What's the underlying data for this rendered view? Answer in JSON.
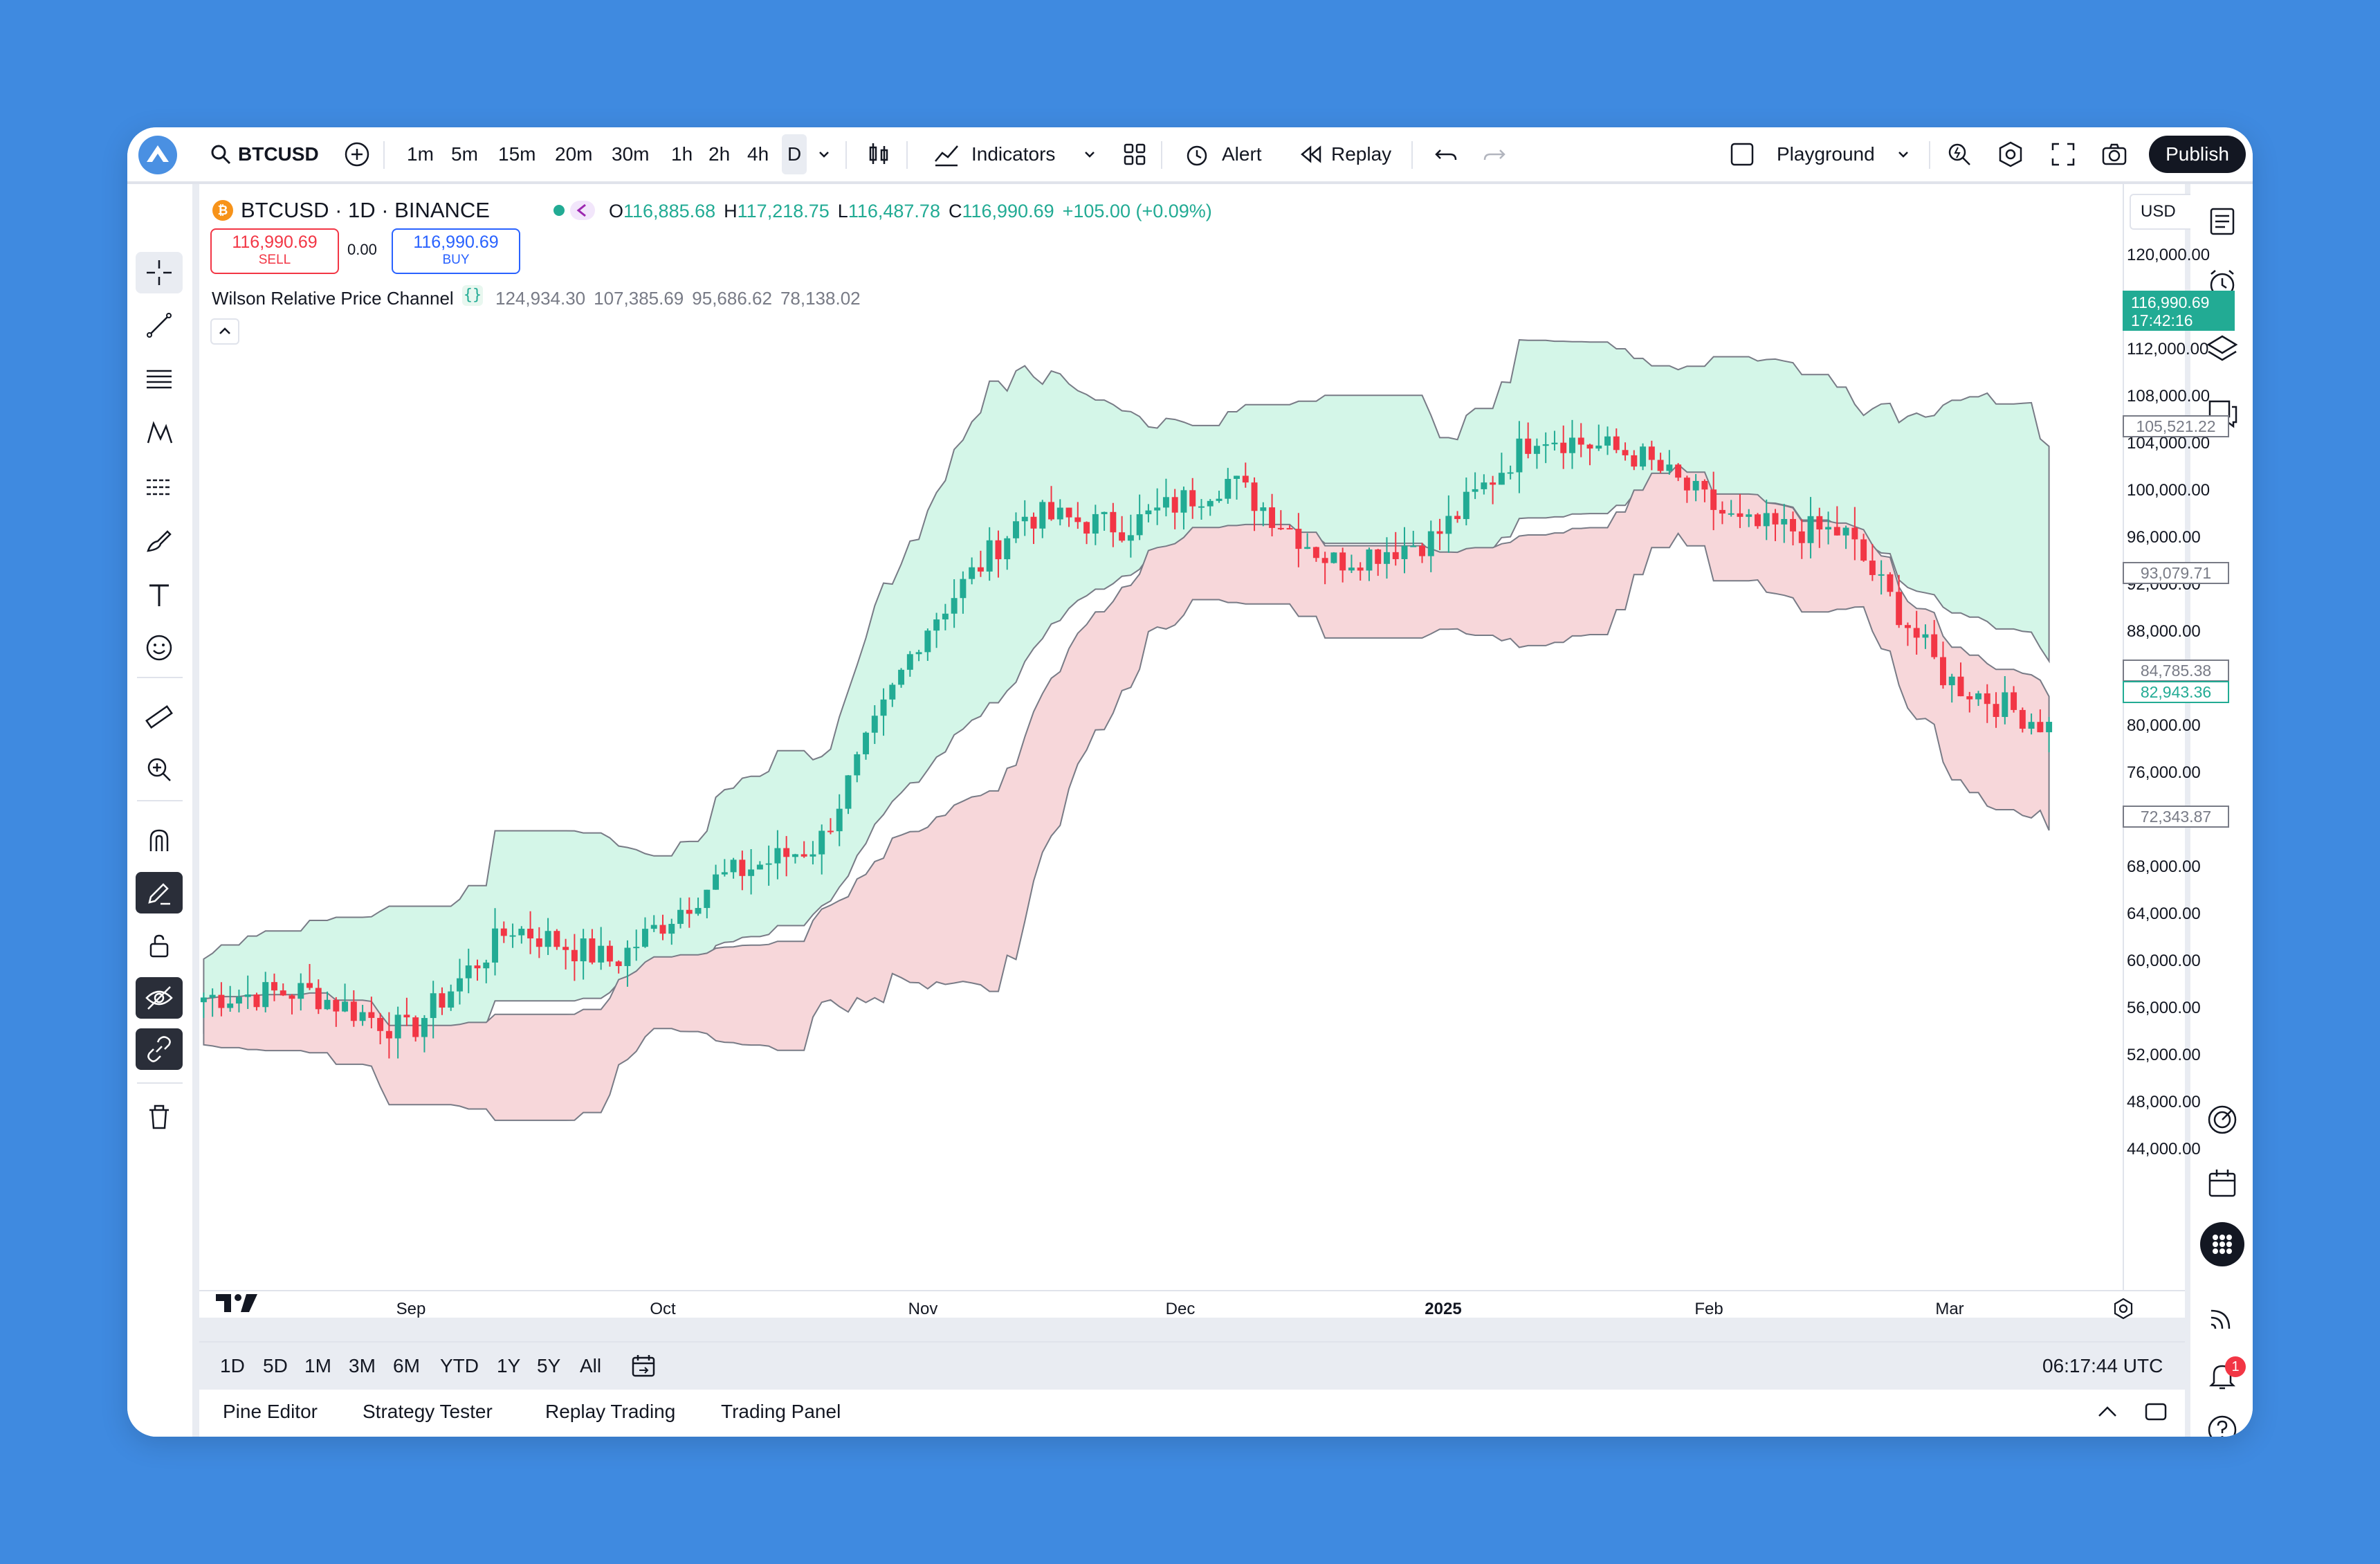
{
  "toolbar": {
    "symbol": "BTCUSD",
    "intervals": [
      "1m",
      "5m",
      "15m",
      "20m",
      "30m",
      "1h",
      "2h",
      "4h",
      "D"
    ],
    "active_interval": "D",
    "indicators_label": "Indicators",
    "alert_label": "Alert",
    "replay_label": "Replay",
    "layout_name": "Playground",
    "publish_label": "Publish"
  },
  "legend": {
    "title": "BTCUSD · 1D · BINANCE",
    "o_label": "O",
    "o": "116,885.68",
    "h_label": "H",
    "h": "117,218.75",
    "l_label": "L",
    "l": "116,487.78",
    "c_label": "C",
    "c": "116,990.69",
    "change": "+105.00 (+0.09%)",
    "sell_price": "116,990.69",
    "sell_label": "SELL",
    "spread": "0.00",
    "buy_price": "116,990.69",
    "buy_label": "BUY",
    "indicator_name": "Wilson Relative Price Channel",
    "indicator_values": [
      "124,934.30",
      "107,385.69",
      "95,686.62",
      "78,138.02"
    ]
  },
  "currency": "USD",
  "price_axis": {
    "labels": [
      "120,000.00",
      "112,000.00",
      "108,000.00",
      "104,000.00",
      "100,000.00",
      "96,000.00",
      "92,000.00",
      "88,000.00",
      "80,000.00",
      "76,000.00",
      "68,000.00",
      "64,000.00",
      "60,000.00",
      "56,000.00",
      "52,000.00",
      "48,000.00",
      "44,000.00"
    ],
    "current_price": "116,990.69",
    "countdown": "17:42:16",
    "tags": [
      {
        "text": "105,521.22",
        "style": "gray"
      },
      {
        "text": "93,079.71",
        "style": "gray"
      },
      {
        "text": "84,785.38",
        "style": "gray"
      },
      {
        "text": "82,943.36",
        "style": "green"
      },
      {
        "text": "72,343.87",
        "style": "gray"
      }
    ]
  },
  "time_axis": [
    "Sep",
    "Oct",
    "Nov",
    "Dec",
    "2025",
    "Feb",
    "Mar"
  ],
  "ranges": [
    "1D",
    "5D",
    "1M",
    "3M",
    "6M",
    "YTD",
    "1Y",
    "5Y",
    "All"
  ],
  "clock": "06:17:44 UTC",
  "bottom_tabs": [
    "Pine Editor",
    "Strategy Tester",
    "Replay Trading",
    "Trading Panel"
  ],
  "notifications": "1",
  "colors": {
    "up": "#22ab94",
    "down": "#f23645",
    "band_upper": "#d4f6e8",
    "band_lower": "#f7d7da",
    "accent": "#2962ff"
  },
  "chart_data": {
    "type": "candlestick",
    "symbol": "BTCUSD",
    "timeframe": "1D",
    "x_ticks": [
      "Sep",
      "Oct",
      "Nov",
      "Dec",
      "2025",
      "Feb",
      "Mar"
    ],
    "ylim": [
      44000,
      120000
    ],
    "approx_close_path": [
      {
        "t": "Aug",
        "close": 57000
      },
      {
        "t": "Sep",
        "close": 57500
      },
      {
        "t": "Sep",
        "close": 54000
      },
      {
        "t": "Oct",
        "close": 63000
      },
      {
        "t": "Oct",
        "close": 60000
      },
      {
        "t": "Oct",
        "close": 67000
      },
      {
        "t": "Nov",
        "close": 70000
      },
      {
        "t": "Nov",
        "close": 88000
      },
      {
        "t": "Nov",
        "close": 98000
      },
      {
        "t": "Dec",
        "close": 97000
      },
      {
        "t": "Dec",
        "close": 101000
      },
      {
        "t": "Dec",
        "close": 94000
      },
      {
        "t": "2025",
        "close": 96000
      },
      {
        "t": "Jan",
        "close": 105000
      },
      {
        "t": "Jan",
        "close": 103000
      },
      {
        "t": "Feb",
        "close": 97000
      },
      {
        "t": "Feb",
        "close": 96500
      },
      {
        "t": "Mar",
        "close": 84000
      },
      {
        "t": "Mar",
        "close": 80000
      }
    ],
    "channel": {
      "name": "Wilson Relative Price Channel",
      "upper_start": 63000,
      "upper_mid": 98000,
      "upper_peak": 116000,
      "upper_end": 104000,
      "lower_start": 58000,
      "lower_end": 72000
    }
  }
}
